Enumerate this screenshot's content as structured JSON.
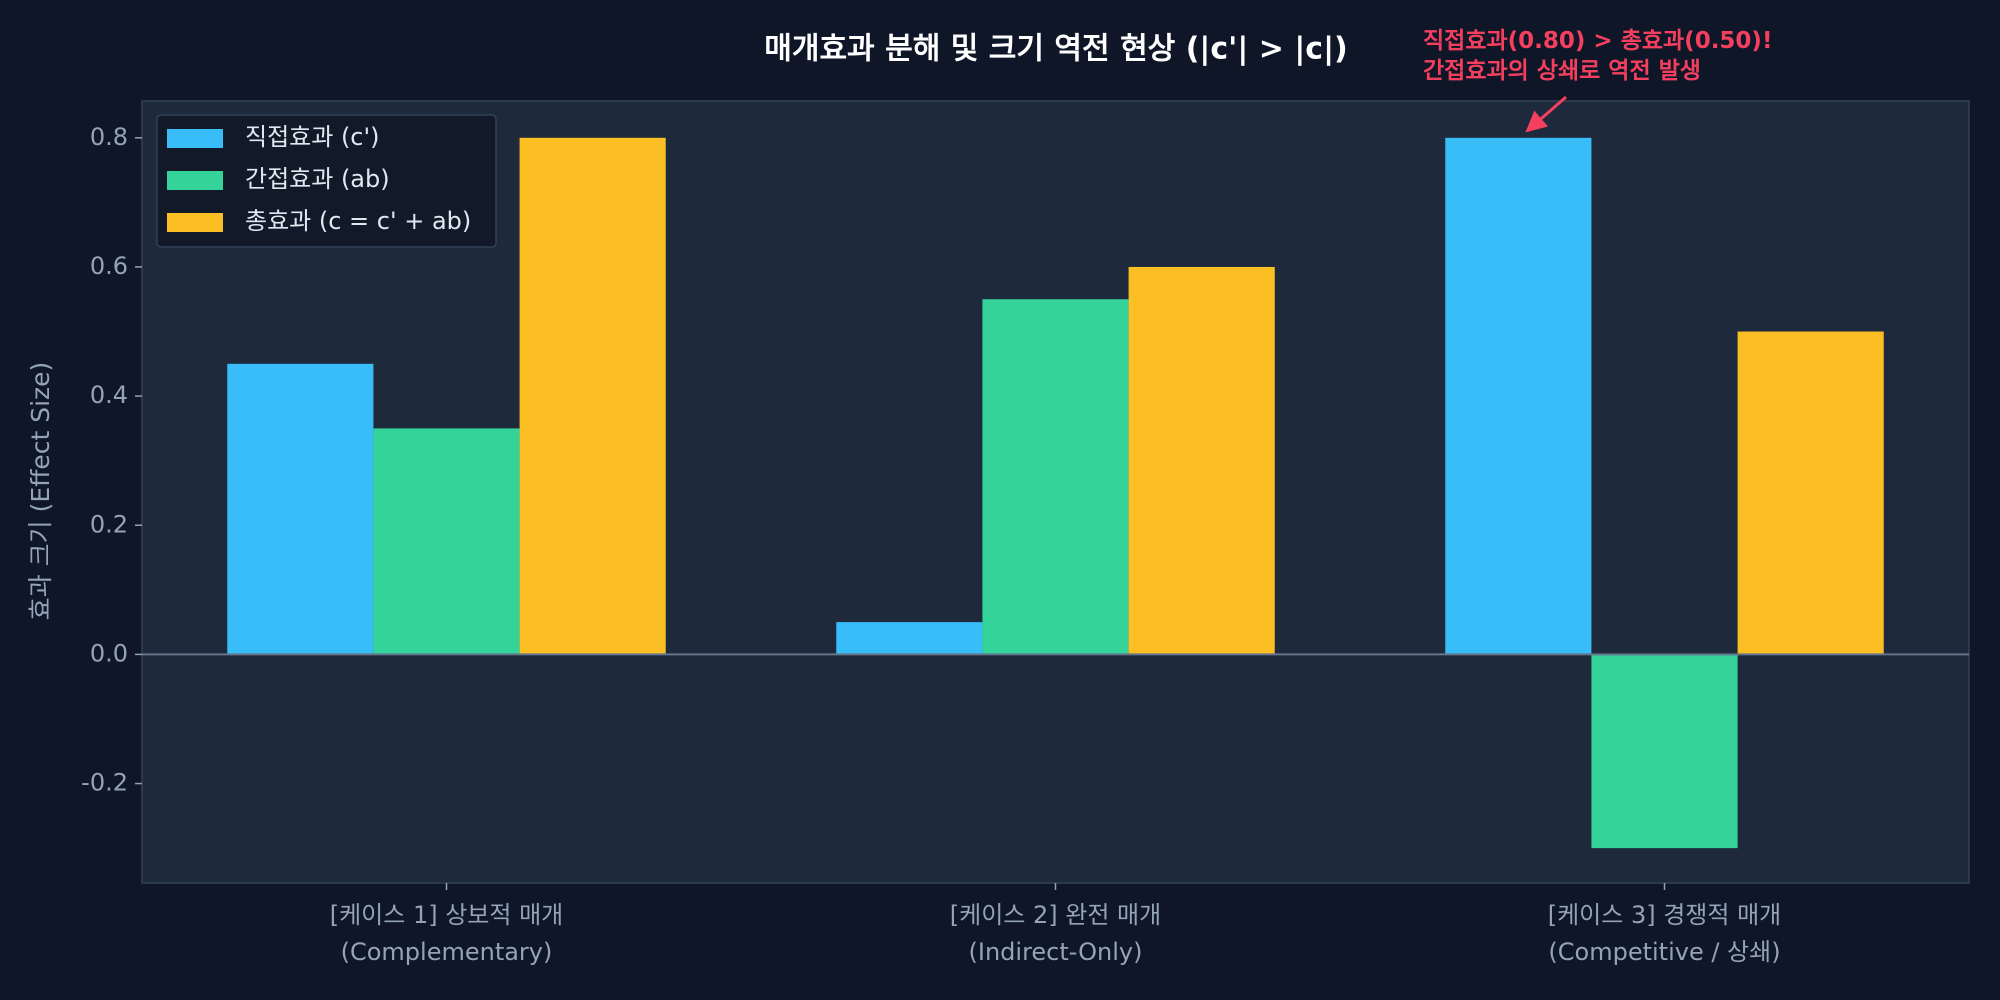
{
  "chart_data": {
    "type": "bar",
    "title": "매개효과 분해 및 크기 역전 현상 (|c'| > |c|)",
    "ylabel": "효과 크기 (Effect Size)",
    "categories": [
      "[케이스 1] 상보적 매개\n(Complementary)",
      "[케이스 2] 완전 매개\n(Indirect-Only)",
      "[케이스 3] 경쟁적 매개\n(Competitive / 상쇄)"
    ],
    "series": [
      {
        "name": "직접효과 (c')",
        "color": "#38bdf8",
        "values": [
          0.45,
          0.05,
          0.8
        ]
      },
      {
        "name": "간접효과 (ab)",
        "color": "#34d399",
        "values": [
          0.35,
          0.55,
          -0.3
        ]
      },
      {
        "name": "총효과 (c = c' + ab)",
        "color": "#fbbf24",
        "values": [
          0.8,
          0.6,
          0.5
        ]
      }
    ],
    "ylim": [
      -0.354,
      0.857
    ],
    "yticks": [
      -0.2,
      {
        "value": 0,
        "label": "0.0"
      },
      0.2,
      0.4,
      0.6,
      0.8
    ],
    "legend": "upper-left",
    "annotation": "직접효과(0.80) > 총효과(0.50)!\n간접효과의 상쇄로 역전 발생"
  }
}
